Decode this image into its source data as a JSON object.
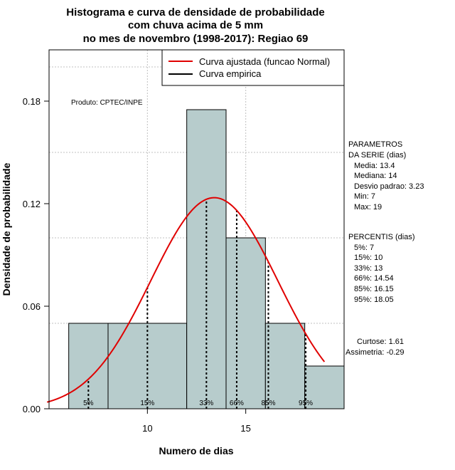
{
  "chart_data": {
    "type": "bar",
    "title_lines": [
      "Histograma e curva de densidade de probabilidade",
      "com chuva acima de 5 mm",
      "no mes de novembro (1998-2017): Regiao 69"
    ],
    "xlabel": "Numero de dias",
    "ylabel": "Densidade de probabilidade",
    "xlim": [
      5,
      20
    ],
    "ylim": [
      0,
      0.21
    ],
    "x_ticks": [
      10,
      15
    ],
    "y_ticks": [
      "0.00",
      "0.06",
      "0.12",
      "0.18"
    ],
    "bins": [
      {
        "x0": 6,
        "x1": 8,
        "density": 0.05
      },
      {
        "x0": 8,
        "x1": 12,
        "density": 0.05
      },
      {
        "x0": 12,
        "x1": 14,
        "density": 0.175
      },
      {
        "x0": 14,
        "x1": 16,
        "density": 0.1
      },
      {
        "x0": 16,
        "x1": 18,
        "density": 0.05
      },
      {
        "x0": 18,
        "x1": 20,
        "density": 0.025
      }
    ],
    "normal_curve": {
      "name": "Curva ajustada (funcao Normal)",
      "mean": 13.4,
      "sd": 3.23,
      "from": 4.9,
      "to": 19.0,
      "color": "#e00000"
    },
    "empirical_curve": {
      "name": "Curva empirica",
      "color": "#000000"
    },
    "percentile_lines": [
      {
        "label": "5%",
        "x": 7
      },
      {
        "label": "15%",
        "x": 10
      },
      {
        "label": "33%",
        "x": 13
      },
      {
        "label": "66%",
        "x": 14.54
      },
      {
        "label": "85%",
        "x": 16.15
      },
      {
        "label": "95%",
        "x": 18.05
      }
    ],
    "colors": {
      "bar_fill": "#b7cccc",
      "bar_stroke": "#000000",
      "grid": "#c0c0c0"
    },
    "annotations": {
      "produto": "Produto: CPTEC/INPE",
      "parametros_title": [
        "PARAMETROS",
        "DA SERIE (dias)"
      ],
      "parametros": [
        "Media: 13.4",
        "Mediana: 14",
        "Desvio padrao: 3.23",
        "Min: 7",
        "Max: 19"
      ],
      "percentis_title": "PERCENTIS (dias)",
      "percentis": [
        "5%: 7",
        "15%: 10",
        "33%: 13",
        "66%: 14.54",
        "85%: 16.15",
        "95%: 18.05"
      ],
      "curtose": "Curtose: 1.61",
      "assimetria": "Assimetria: -0.29"
    }
  }
}
